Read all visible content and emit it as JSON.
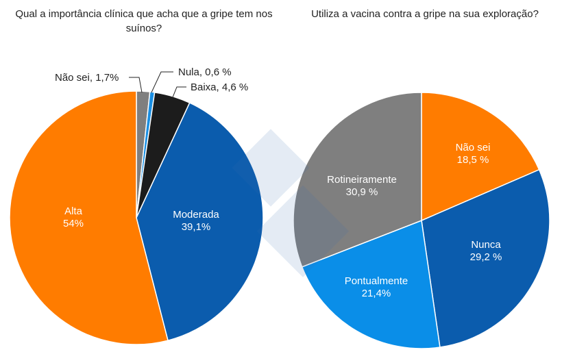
{
  "chart_data": [
    {
      "type": "pie",
      "title": "Qual a importância clínica que acha que a gripe tem nos suínos?",
      "slices": [
        {
          "label": "Não sei",
          "value": 1.7,
          "text": "Não sei, 1,7%",
          "color": "#7F7F7F"
        },
        {
          "label": "Nula",
          "value": 0.6,
          "text": "Nula, 0,6 %",
          "color": "#1A8FE3"
        },
        {
          "label": "Baixa",
          "value": 4.6,
          "text": "Baixa, 4,6 %",
          "color": "#1C1C1C"
        },
        {
          "label": "Moderada",
          "value": 39.1,
          "text": "39,1%",
          "color": "#0B5CAD"
        },
        {
          "label": "Alta",
          "value": 54,
          "text": "54%",
          "color": "#FF7C00"
        }
      ]
    },
    {
      "type": "pie",
      "title": "Utiliza a vacina contra a gripe na sua exploração?",
      "slices": [
        {
          "label": "Não sei",
          "value": 18.5,
          "text": "18,5 %",
          "color": "#FF7C00"
        },
        {
          "label": "Nunca",
          "value": 29.2,
          "text": "29,2 %",
          "color": "#0B5CAD"
        },
        {
          "label": "Pontualmente",
          "value": 21.4,
          "text": "21,4%",
          "color": "#0A8EE8"
        },
        {
          "label": "Rotineiramente",
          "value": 30.9,
          "text": "30,9 %",
          "color": "#7F7F7F"
        }
      ]
    }
  ]
}
